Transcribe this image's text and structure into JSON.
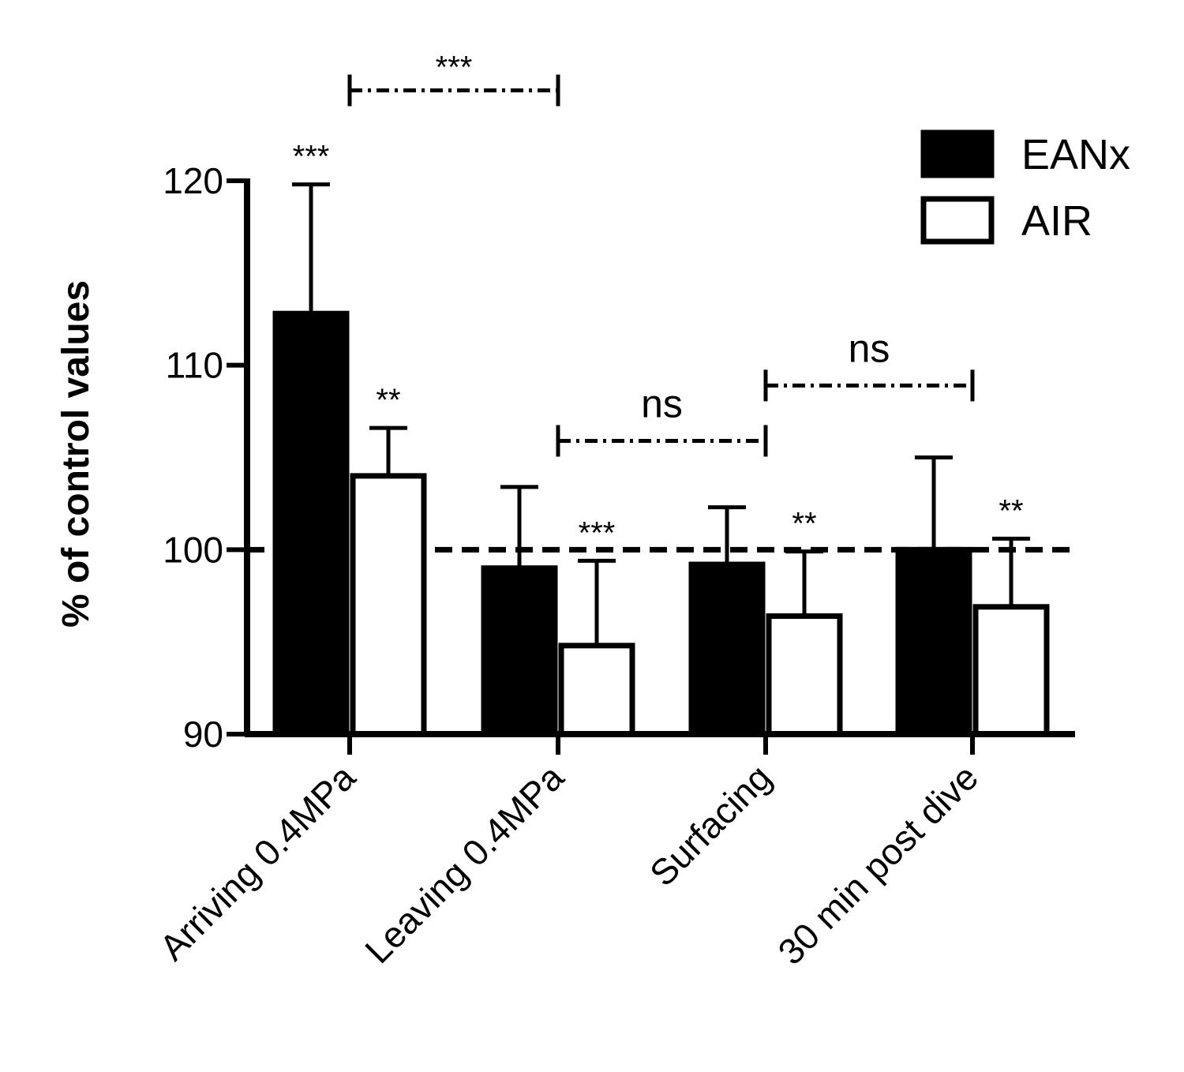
{
  "chart_data": {
    "type": "bar",
    "title": "",
    "xlabel": "",
    "ylabel": "% of control values",
    "ylim": [
      90,
      120
    ],
    "yticks": [
      90,
      100,
      110,
      120
    ],
    "categories": [
      "Arriving 0.4MPa",
      "Leaving 0.4MPa",
      "Surfacing",
      "30 min post dive"
    ],
    "series": [
      {
        "name": "EANx",
        "color": "#000000",
        "fill": "solid",
        "values": [
          112.8,
          99.0,
          99.2,
          100.0
        ],
        "errors": [
          7.0,
          4.4,
          3.1,
          5.0
        ],
        "significance": [
          "***",
          "",
          "",
          ""
        ]
      },
      {
        "name": "AIR",
        "color": "#ffffff",
        "fill": "open",
        "values": [
          104.0,
          94.8,
          96.4,
          96.9
        ],
        "errors": [
          2.6,
          4.6,
          3.5,
          3.7
        ],
        "significance": [
          "**",
          "***",
          "**",
          "**"
        ]
      }
    ],
    "reference_line": {
      "y": 100,
      "style": "dashed"
    },
    "comparisons": [
      {
        "from": "Arriving 0.4MPa",
        "to": "Leaving 0.4MPa",
        "label": "***",
        "y": 124.9
      },
      {
        "from": "Leaving 0.4MPa",
        "to": "Surfacing",
        "label": "ns",
        "y": 105.9
      },
      {
        "from": "Surfacing",
        "to": "30 min post dive",
        "label": "ns",
        "y": 108.9
      }
    ],
    "legend": {
      "position": "top-right",
      "entries": [
        "EANx",
        "AIR"
      ]
    }
  }
}
